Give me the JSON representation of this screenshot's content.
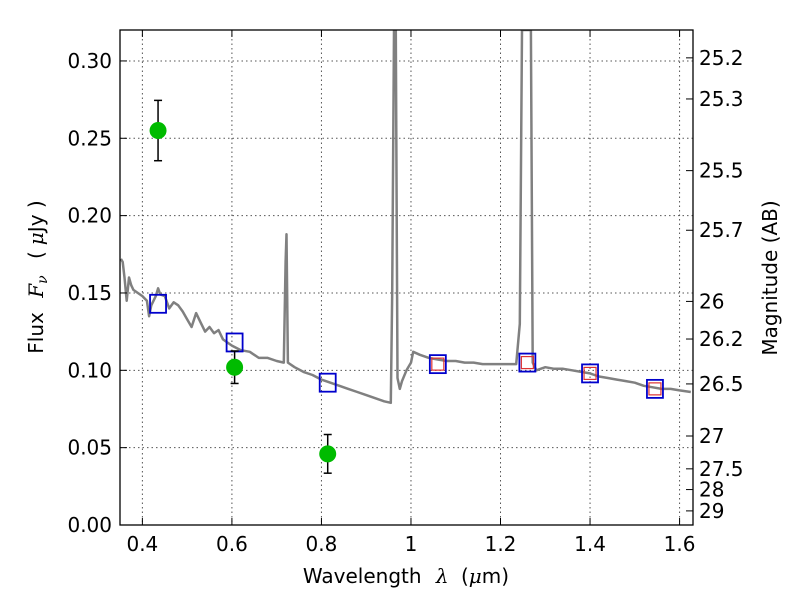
{
  "chart_data": {
    "type": "scatter",
    "xlabel_text": "Wavelength",
    "xlabel_sym": "λ",
    "xlabel_unit_pre": "(",
    "xlabel_unit_mu": "μ",
    "xlabel_unit_post": "m)",
    "ylabel_text": "Flux",
    "ylabel_sym": "F",
    "ylabel_sub": "ν",
    "ylabel_unit_pre": "(",
    "ylabel_unit_mu": "μ",
    "ylabel_unit_post": "Jy )",
    "y2label": "Magnitude (AB)",
    "xlim": [
      0.35,
      1.63
    ],
    "ylim": [
      0.0,
      0.32
    ],
    "grid": true,
    "x_ticks": [
      {
        "v": 0.4,
        "label": "0.4"
      },
      {
        "v": 0.6,
        "label": "0.6"
      },
      {
        "v": 0.8,
        "label": "0.8"
      },
      {
        "v": 1.0,
        "label": "1"
      },
      {
        "v": 1.2,
        "label": "1.2"
      },
      {
        "v": 1.4,
        "label": "1.4"
      },
      {
        "v": 1.6,
        "label": "1.6"
      }
    ],
    "y_ticks": [
      {
        "v": 0.0,
        "label": "0.00"
      },
      {
        "v": 0.05,
        "label": "0.05"
      },
      {
        "v": 0.1,
        "label": "0.10"
      },
      {
        "v": 0.15,
        "label": "0.15"
      },
      {
        "v": 0.2,
        "label": "0.20"
      },
      {
        "v": 0.25,
        "label": "0.25"
      },
      {
        "v": 0.3,
        "label": "0.30"
      }
    ],
    "mag_ticks": [
      {
        "mag": 25.2,
        "label": "25.2"
      },
      {
        "mag": 25.3,
        "label": "25.3"
      },
      {
        "mag": 25.5,
        "label": "25.5"
      },
      {
        "mag": 25.7,
        "label": "25.7"
      },
      {
        "mag": 26,
        "label": "26"
      },
      {
        "mag": 26.2,
        "label": "26.2"
      },
      {
        "mag": 26.5,
        "label": "26.5"
      },
      {
        "mag": 27,
        "label": "27"
      },
      {
        "mag": 27.5,
        "label": "27.5"
      },
      {
        "mag": 28,
        "label": "28"
      },
      {
        "mag": 29,
        "label": "29"
      }
    ],
    "observed": [
      {
        "x": 0.435,
        "y": 0.255,
        "err": 0.0195
      },
      {
        "x": 0.606,
        "y": 0.102,
        "err": 0.0105
      },
      {
        "x": 0.814,
        "y": 0.046,
        "err": 0.0125
      }
    ],
    "model_blue": [
      {
        "x": 0.435,
        "y": 0.143
      },
      {
        "x": 0.606,
        "y": 0.118
      },
      {
        "x": 0.814,
        "y": 0.092
      },
      {
        "x": 1.06,
        "y": 0.104
      },
      {
        "x": 1.26,
        "y": 0.105
      },
      {
        "x": 1.4,
        "y": 0.098
      },
      {
        "x": 1.545,
        "y": 0.088
      }
    ],
    "model_red": [
      {
        "x": 1.06,
        "y": 0.104
      },
      {
        "x": 1.26,
        "y": 0.105
      },
      {
        "x": 1.4,
        "y": 0.098
      },
      {
        "x": 1.545,
        "y": 0.088
      }
    ],
    "template_sed": [
      [
        0.352,
        0.172
      ],
      [
        0.356,
        0.17
      ],
      [
        0.36,
        0.16
      ],
      [
        0.365,
        0.145
      ],
      [
        0.37,
        0.16
      ],
      [
        0.375,
        0.155
      ],
      [
        0.38,
        0.152
      ],
      [
        0.39,
        0.15
      ],
      [
        0.4,
        0.148
      ],
      [
        0.41,
        0.145
      ],
      [
        0.415,
        0.135
      ],
      [
        0.42,
        0.142
      ],
      [
        0.43,
        0.148
      ],
      [
        0.435,
        0.153
      ],
      [
        0.44,
        0.149
      ],
      [
        0.45,
        0.148
      ],
      [
        0.46,
        0.14
      ],
      [
        0.47,
        0.144
      ],
      [
        0.48,
        0.142
      ],
      [
        0.49,
        0.138
      ],
      [
        0.5,
        0.133
      ],
      [
        0.51,
        0.128
      ],
      [
        0.52,
        0.137
      ],
      [
        0.53,
        0.131
      ],
      [
        0.54,
        0.125
      ],
      [
        0.55,
        0.128
      ],
      [
        0.56,
        0.124
      ],
      [
        0.57,
        0.126
      ],
      [
        0.58,
        0.12
      ],
      [
        0.59,
        0.118
      ],
      [
        0.6,
        0.116
      ],
      [
        0.62,
        0.113
      ],
      [
        0.64,
        0.112
      ],
      [
        0.66,
        0.108
      ],
      [
        0.68,
        0.108
      ],
      [
        0.7,
        0.106
      ],
      [
        0.716,
        0.105
      ],
      [
        0.72,
        0.17
      ],
      [
        0.722,
        0.188
      ],
      [
        0.725,
        0.105
      ],
      [
        0.74,
        0.102
      ],
      [
        0.76,
        0.099
      ],
      [
        0.78,
        0.097
      ],
      [
        0.8,
        0.094
      ],
      [
        0.82,
        0.092
      ],
      [
        0.84,
        0.09
      ],
      [
        0.86,
        0.088
      ],
      [
        0.88,
        0.086
      ],
      [
        0.9,
        0.084
      ],
      [
        0.92,
        0.082
      ],
      [
        0.94,
        0.08
      ],
      [
        0.955,
        0.079
      ],
      [
        0.958,
        0.15
      ],
      [
        0.962,
        0.32
      ],
      [
        0.966,
        0.32
      ],
      [
        0.968,
        0.2
      ],
      [
        0.97,
        0.095
      ],
      [
        0.975,
        0.088
      ],
      [
        0.98,
        0.093
      ],
      [
        0.99,
        0.1
      ],
      [
        1.0,
        0.105
      ],
      [
        1.005,
        0.112
      ],
      [
        1.02,
        0.11
      ],
      [
        1.04,
        0.108
      ],
      [
        1.06,
        0.107
      ],
      [
        1.08,
        0.106
      ],
      [
        1.1,
        0.106
      ],
      [
        1.12,
        0.105
      ],
      [
        1.14,
        0.105
      ],
      [
        1.16,
        0.104
      ],
      [
        1.18,
        0.104
      ],
      [
        1.2,
        0.104
      ],
      [
        1.22,
        0.104
      ],
      [
        1.235,
        0.104
      ],
      [
        1.243,
        0.13
      ],
      [
        1.248,
        0.32
      ],
      [
        1.268,
        0.32
      ],
      [
        1.272,
        0.105
      ],
      [
        1.28,
        0.1
      ],
      [
        1.3,
        0.102
      ],
      [
        1.32,
        0.101
      ],
      [
        1.34,
        0.101
      ],
      [
        1.36,
        0.1
      ],
      [
        1.38,
        0.099
      ],
      [
        1.4,
        0.098
      ],
      [
        1.42,
        0.096
      ],
      [
        1.44,
        0.095
      ],
      [
        1.46,
        0.094
      ],
      [
        1.48,
        0.093
      ],
      [
        1.5,
        0.092
      ],
      [
        1.52,
        0.09
      ],
      [
        1.54,
        0.089
      ],
      [
        1.56,
        0.088
      ],
      [
        1.58,
        0.088
      ],
      [
        1.6,
        0.087
      ],
      [
        1.625,
        0.086
      ]
    ],
    "colors": {
      "observed": "#00bb00",
      "model_blue": "#0000cc",
      "model_red": "#dd3333",
      "sed": "#808080",
      "grid": "#555555"
    }
  }
}
